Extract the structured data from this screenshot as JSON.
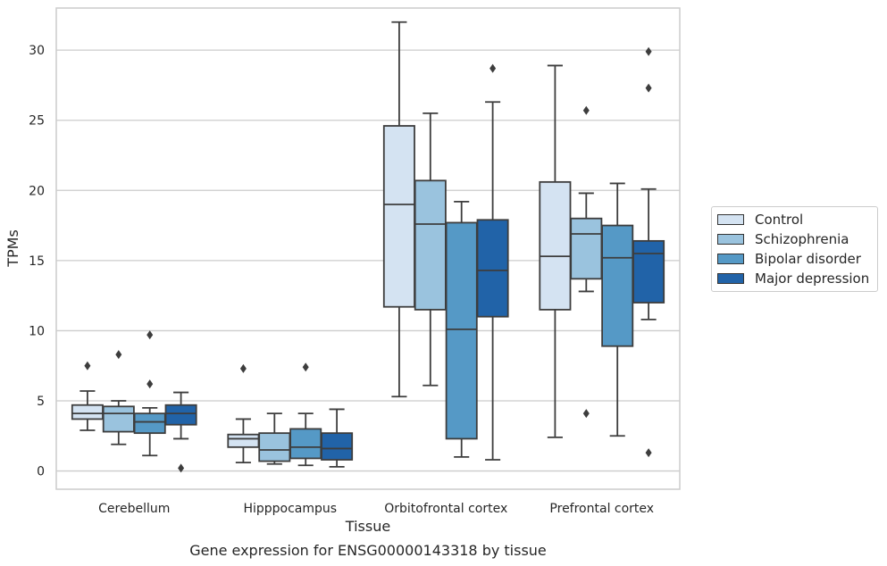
{
  "chart_data": {
    "type": "box",
    "xlabel": "Tissue",
    "ylabel": "TPMs",
    "caption": "Gene expression for ENSG00000143318 by tissue",
    "categories": [
      "Cerebellum",
      "Hipppocampus",
      "Orbitofrontal cortex",
      "Prefrontal cortex"
    ],
    "ylim": [
      -1.3,
      33
    ],
    "yticks": [
      0,
      5,
      10,
      15,
      20,
      25,
      30
    ],
    "grid": true,
    "legend_position": "right",
    "series": [
      {
        "name": "Control",
        "color": "#d4e3f2",
        "boxes": [
          {
            "whisker_low": 2.9,
            "q1": 3.7,
            "median": 4.1,
            "q3": 4.7,
            "whisker_high": 5.7,
            "outliers": [
              7.5
            ]
          },
          {
            "whisker_low": 0.6,
            "q1": 1.7,
            "median": 2.3,
            "q3": 2.6,
            "whisker_high": 3.7,
            "outliers": [
              7.3
            ]
          },
          {
            "whisker_low": 5.3,
            "q1": 11.7,
            "median": 19.0,
            "q3": 24.6,
            "whisker_high": 32.0,
            "outliers": []
          },
          {
            "whisker_low": 2.4,
            "q1": 11.5,
            "median": 15.3,
            "q3": 20.6,
            "whisker_high": 28.9,
            "outliers": []
          }
        ]
      },
      {
        "name": "Schizophrenia",
        "color": "#9ac3de",
        "boxes": [
          {
            "whisker_low": 1.9,
            "q1": 2.8,
            "median": 4.1,
            "q3": 4.6,
            "whisker_high": 5.0,
            "outliers": [
              8.3
            ]
          },
          {
            "whisker_low": 0.5,
            "q1": 0.7,
            "median": 1.5,
            "q3": 2.7,
            "whisker_high": 4.1,
            "outliers": []
          },
          {
            "whisker_low": 6.1,
            "q1": 11.5,
            "median": 17.6,
            "q3": 20.7,
            "whisker_high": 25.5,
            "outliers": []
          },
          {
            "whisker_low": 12.8,
            "q1": 13.7,
            "median": 16.9,
            "q3": 18.0,
            "whisker_high": 19.8,
            "outliers": [
              25.7,
              4.1
            ]
          }
        ]
      },
      {
        "name": "Bipolar disorder",
        "color": "#5599c6",
        "boxes": [
          {
            "whisker_low": 1.1,
            "q1": 2.7,
            "median": 3.5,
            "q3": 4.1,
            "whisker_high": 4.5,
            "outliers": [
              9.7,
              6.2
            ]
          },
          {
            "whisker_low": 0.4,
            "q1": 0.9,
            "median": 1.7,
            "q3": 3.0,
            "whisker_high": 4.1,
            "outliers": [
              7.4
            ]
          },
          {
            "whisker_low": 1.0,
            "q1": 2.3,
            "median": 10.1,
            "q3": 17.7,
            "whisker_high": 19.2,
            "outliers": []
          },
          {
            "whisker_low": 2.5,
            "q1": 8.9,
            "median": 15.2,
            "q3": 17.5,
            "whisker_high": 20.5,
            "outliers": []
          }
        ]
      },
      {
        "name": "Major depression",
        "color": "#2163a8",
        "boxes": [
          {
            "whisker_low": 2.3,
            "q1": 3.3,
            "median": 4.1,
            "q3": 4.7,
            "whisker_high": 5.6,
            "outliers": [
              0.2
            ]
          },
          {
            "whisker_low": 0.3,
            "q1": 0.8,
            "median": 1.6,
            "q3": 2.7,
            "whisker_high": 4.4,
            "outliers": []
          },
          {
            "whisker_low": 0.8,
            "q1": 11.0,
            "median": 14.3,
            "q3": 17.9,
            "whisker_high": 26.3,
            "outliers": [
              28.7
            ]
          },
          {
            "whisker_low": 10.8,
            "q1": 12.0,
            "median": 15.5,
            "q3": 16.4,
            "whisker_high": 20.1,
            "outliers": [
              29.9,
              27.3,
              1.3
            ]
          }
        ]
      }
    ]
  }
}
